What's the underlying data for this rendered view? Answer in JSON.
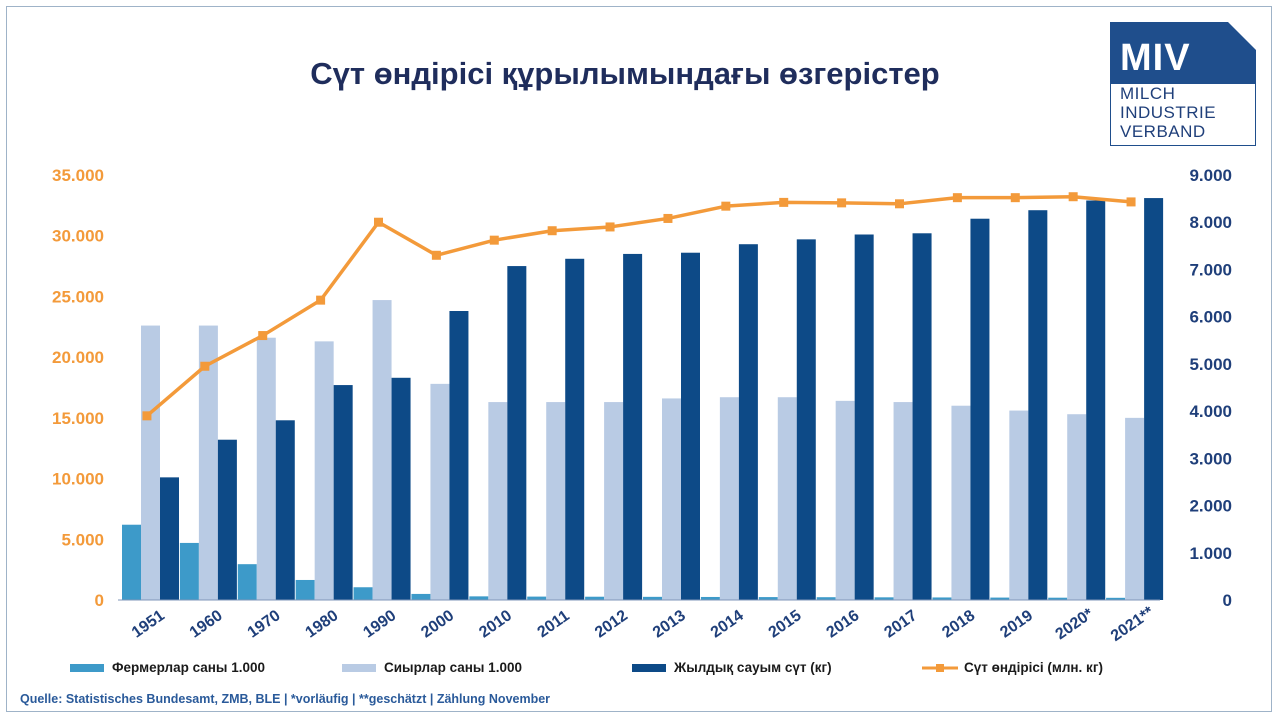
{
  "title": "Сүт өндірісі құрылымындағы өзгерістер",
  "logo": {
    "main": "MIV",
    "line1": "MILCH",
    "line2": "INDUSTRIE",
    "line3": "VERBAND",
    "color": "#1f4e8c"
  },
  "source": "Quelle: Statistisches Bundesamt, ZMB, BLE | *vorläufig | **geschätzt | Zählung November",
  "colors": {
    "farmers": "#3d9ac9",
    "cows": "#b9cbe4",
    "yield": "#0d4a87",
    "production": "#f39a3a",
    "left_axis": "#f39a3a",
    "right_axis": "#1f3f7a"
  },
  "chart_data": {
    "type": "bar",
    "categories": [
      "1951",
      "1960",
      "1970",
      "1980",
      "1990",
      "2000",
      "2010",
      "2011",
      "2012",
      "2013",
      "2014",
      "2015",
      "2016",
      "2017",
      "2018",
      "2019",
      "2020*",
      "2021**"
    ],
    "left_axis": {
      "ylim": [
        0,
        35000
      ],
      "ticks": [
        "0",
        "5.000",
        "10.000",
        "15.000",
        "20.000",
        "25.000",
        "30.000",
        "35.000"
      ],
      "tick_values": [
        0,
        5000,
        10000,
        15000,
        20000,
        25000,
        30000,
        35000
      ]
    },
    "right_axis": {
      "ylim": [
        0,
        9000
      ],
      "ticks": [
        "0",
        "1.000",
        "2.000",
        "3.000",
        "4.000",
        "5.000",
        "6.000",
        "7.000",
        "8.000",
        "9.000"
      ],
      "tick_values": [
        0,
        1000,
        2000,
        3000,
        4000,
        5000,
        6000,
        7000,
        8000,
        9000
      ]
    },
    "series": [
      {
        "name": "Фермерлар саны 1.000",
        "type": "bar",
        "axis": "left",
        "values": [
          6200,
          4700,
          2950,
          1650,
          1050,
          500,
          300,
          280,
          270,
          260,
          250,
          240,
          230,
          220,
          210,
          200,
          190,
          180
        ]
      },
      {
        "name": "Сиырлар саны 1.000",
        "type": "bar",
        "axis": "left",
        "values": [
          22600,
          22600,
          21600,
          21300,
          24700,
          17800,
          16300,
          16300,
          16300,
          16600,
          16700,
          16700,
          16400,
          16300,
          16000,
          15600,
          15300,
          15000
        ]
      },
      {
        "name": "Жылдық сауым сүт (кг)",
        "type": "bar",
        "axis": "left",
        "values": [
          10100,
          13200,
          14800,
          17700,
          18300,
          23800,
          27500,
          28100,
          28500,
          28600,
          29300,
          29700,
          30100,
          30200,
          31400,
          32100,
          32900,
          33100
        ]
      },
      {
        "name": "Сүт өндірісі (млн. кг)",
        "type": "line",
        "axis": "right",
        "values": [
          3900,
          4950,
          5600,
          6350,
          8000,
          7300,
          7620,
          7820,
          7900,
          8080,
          8340,
          8420,
          8410,
          8390,
          8520,
          8520,
          8540,
          8430
        ]
      }
    ]
  }
}
